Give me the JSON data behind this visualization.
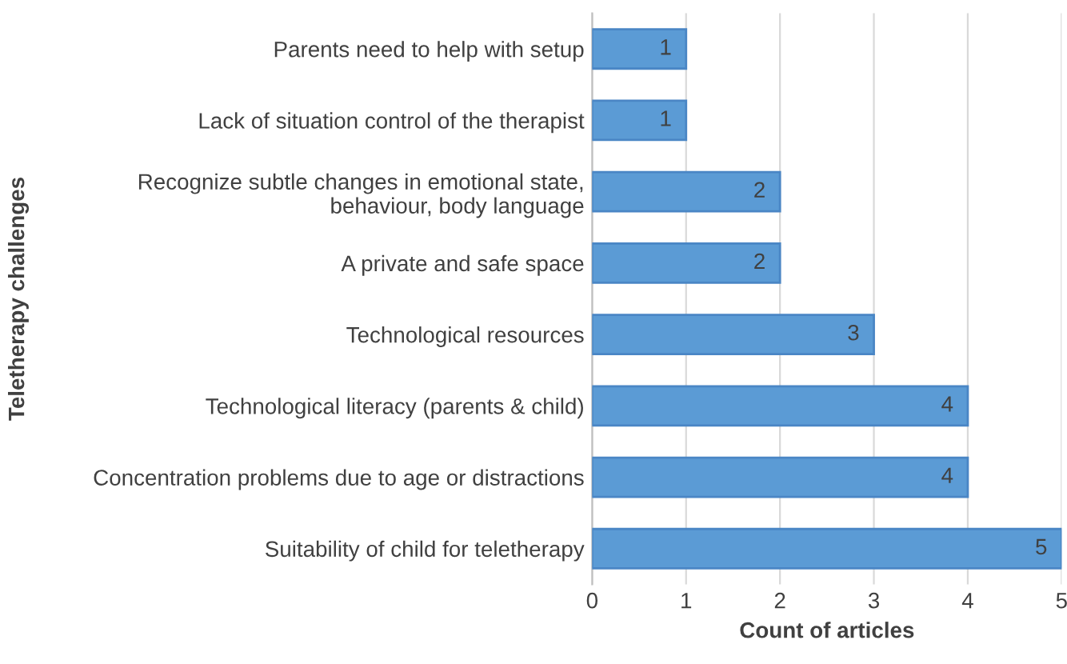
{
  "chart_data": {
    "type": "bar",
    "orientation": "horizontal",
    "xlabel": "Count of articles",
    "ylabel": "Teletherapy challenges",
    "categories": [
      "Parents need to help with setup",
      "Lack of situation control of the therapist",
      "Recognize subtle changes in emotional state,\nbehaviour, body language",
      "A private and safe space",
      "Technological resources",
      "Technological literacy (parents & child)",
      "Concentration problems due to age or distractions",
      "Suitability of child for teletherapy"
    ],
    "values": [
      1,
      1,
      2,
      2,
      3,
      4,
      4,
      5
    ],
    "color": "#5b9bd5",
    "xlim": [
      0,
      5
    ],
    "xticks": [
      0,
      1,
      2,
      3,
      4,
      5
    ],
    "grid": "x",
    "data_labels": true
  }
}
